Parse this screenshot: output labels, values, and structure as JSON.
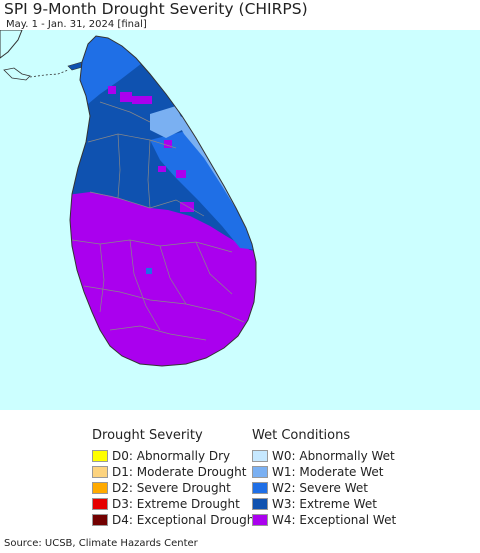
{
  "title": "SPI 9-Month Drought Severity (CHIRPS)",
  "subtitle": "May. 1 - Jan. 31, 2024 [final]",
  "colors": {
    "water": "#ccffff",
    "exceptional_wet": "#aa00ee",
    "extreme_wet": "#0f52b0",
    "severe_wet": "#1f6fe6",
    "moderate_wet": "#7ab0f2",
    "border": "#888888"
  },
  "legend_drought": {
    "title": "Drought Severity",
    "items": [
      {
        "label": "D0: Abnormally Dry",
        "color": "#ffff00"
      },
      {
        "label": "D1: Moderate Drought",
        "color": "#fcd37f"
      },
      {
        "label": "D2: Severe Drought",
        "color": "#ffaa00"
      },
      {
        "label": "D3: Extreme Drought",
        "color": "#e60000"
      },
      {
        "label": "D4: Exceptional Drought",
        "color": "#730000"
      }
    ]
  },
  "legend_wet": {
    "title": "Wet Conditions",
    "items": [
      {
        "label": "W0: Abnormally Wet",
        "color": "#c6e8ff"
      },
      {
        "label": "W1: Moderate Wet",
        "color": "#7ab0f2"
      },
      {
        "label": "W2: Severe Wet",
        "color": "#1f6fe6"
      },
      {
        "label": "W3: Extreme Wet",
        "color": "#0f52b0"
      },
      {
        "label": "W4: Exceptional Wet",
        "color": "#aa00ee"
      }
    ]
  },
  "source": "Source: UCSB, Climate Hazards Center"
}
